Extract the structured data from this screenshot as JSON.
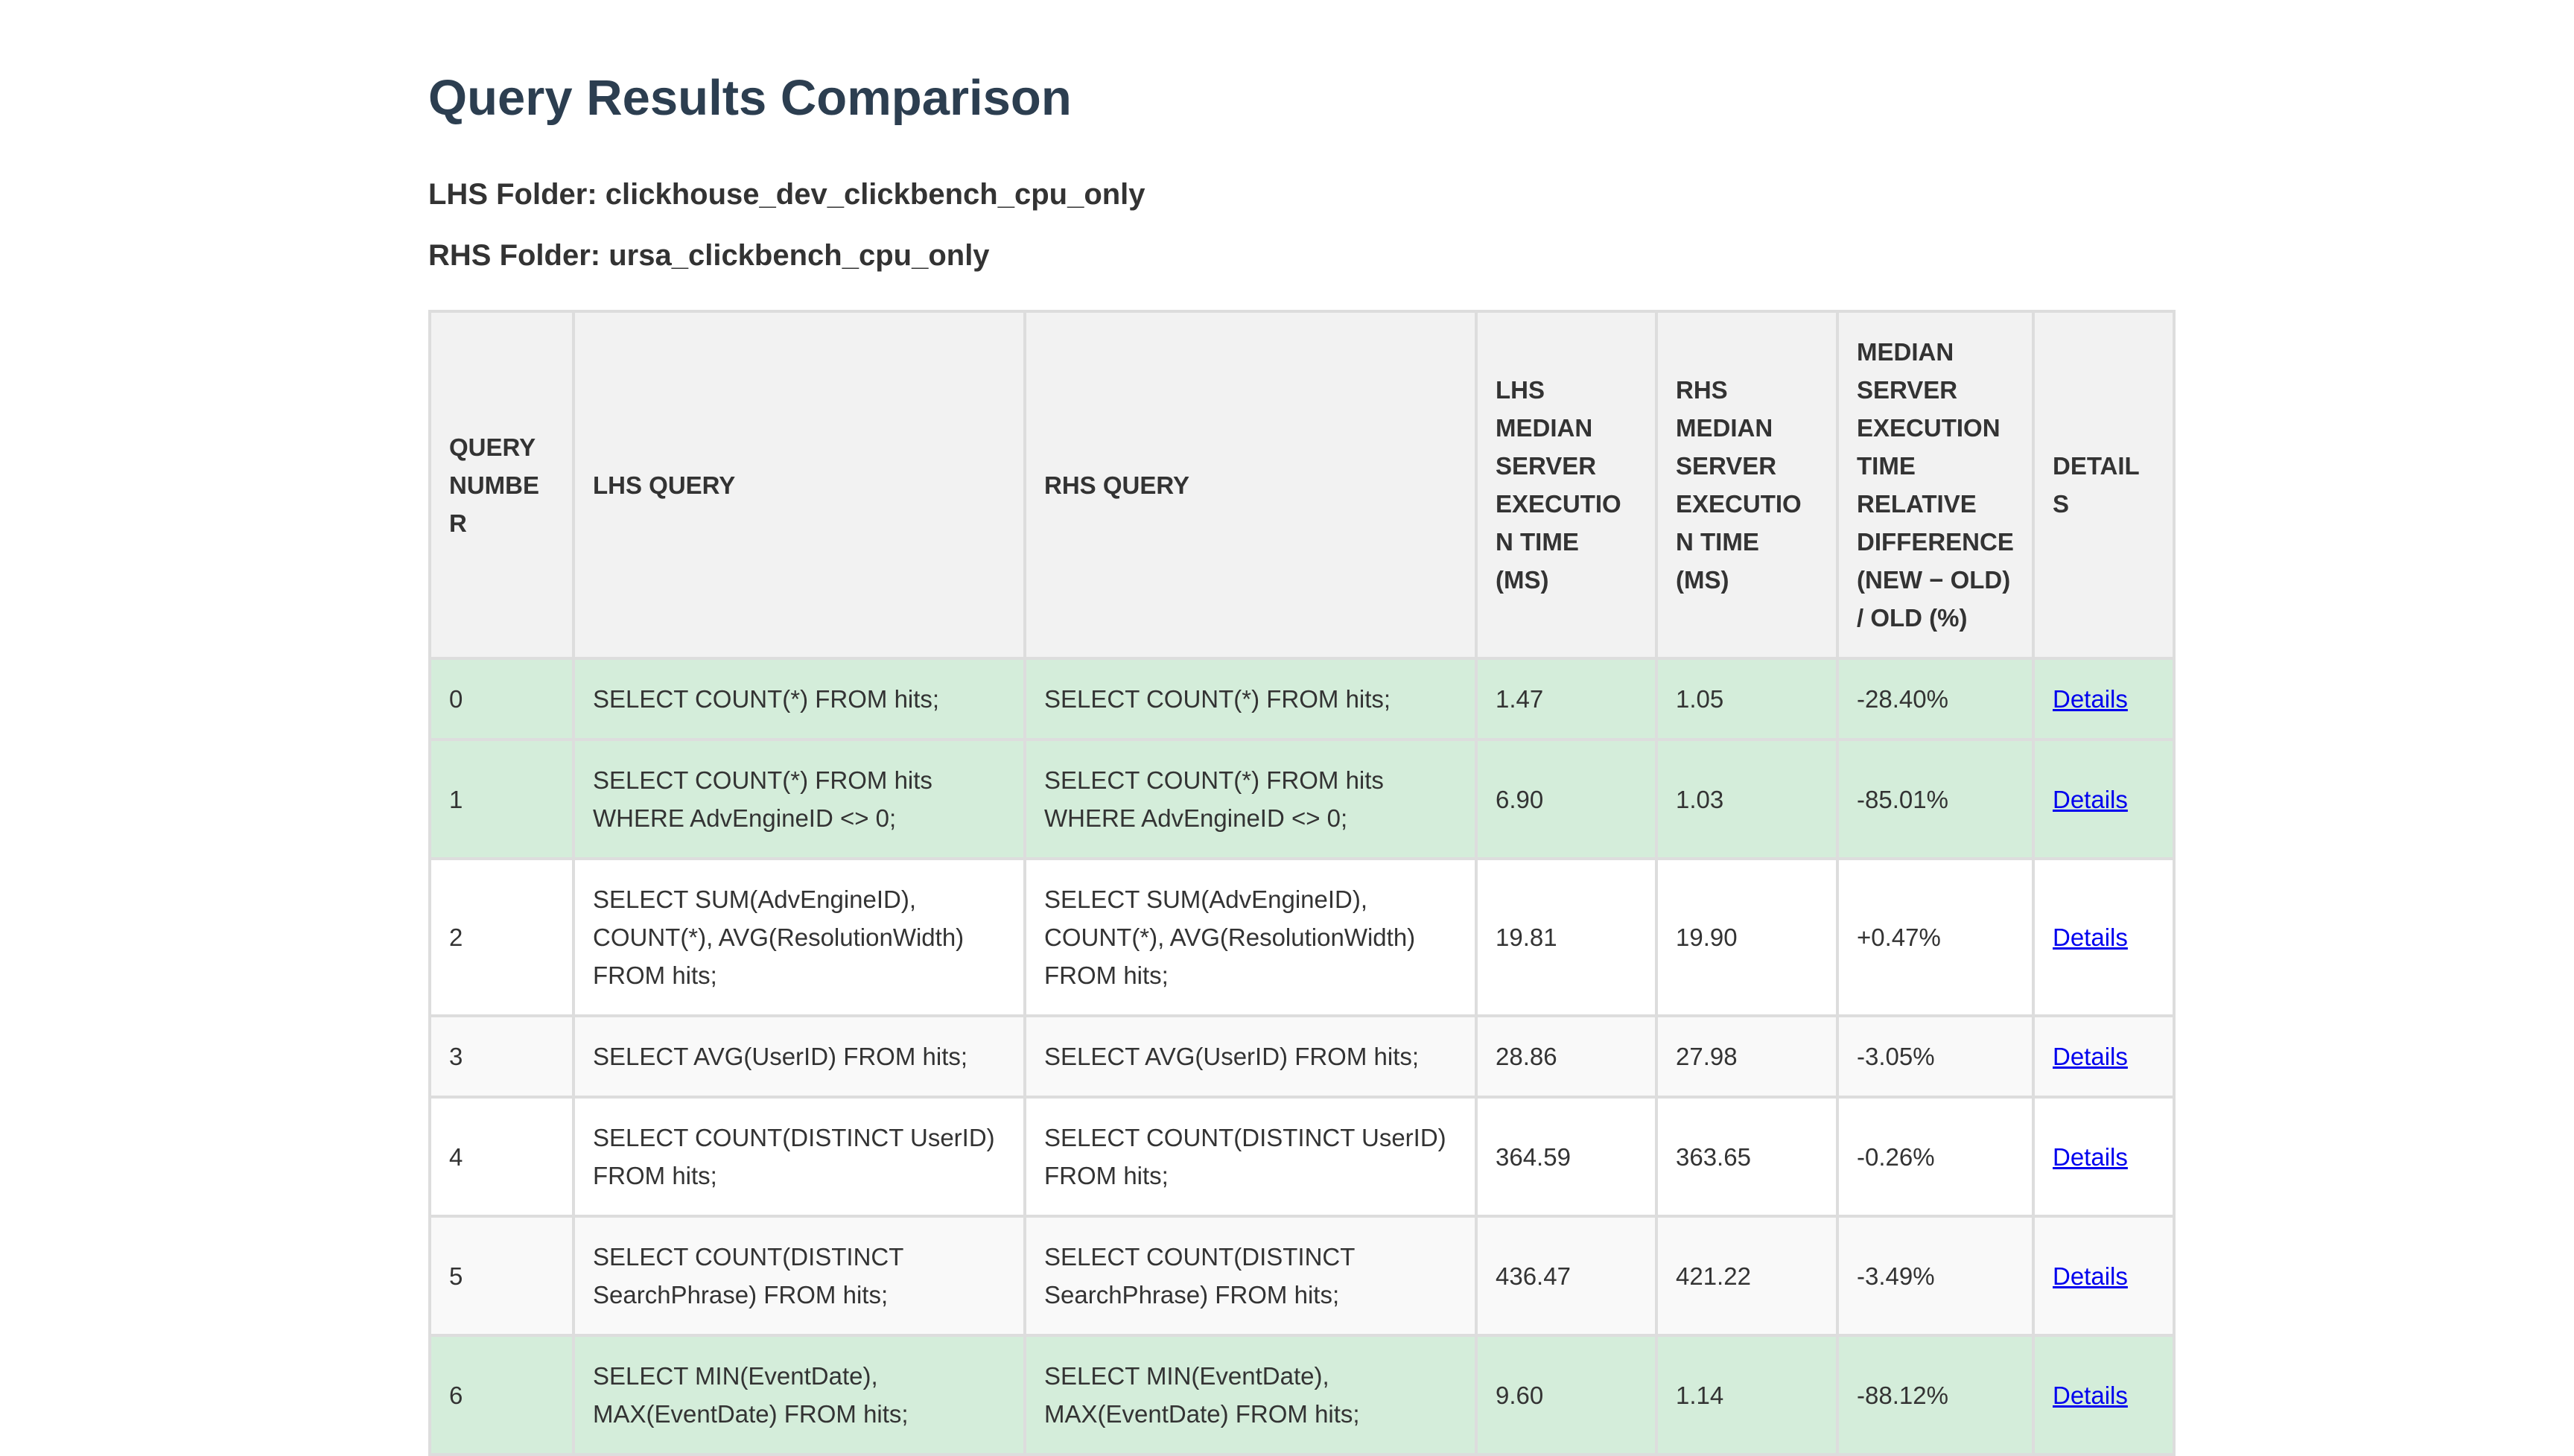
{
  "header": {
    "title": "Query Results Comparison",
    "lhs_folder": "LHS Folder: clickhouse_dev_clickbench_cpu_only",
    "rhs_folder": "RHS Folder: ursa_clickbench_cpu_only"
  },
  "table": {
    "columns": [
      "QUERY NUMBER",
      "LHS QUERY",
      "RHS QUERY",
      "LHS MEDIAN SERVER EXECUTION TIME (MS)",
      "RHS MEDIAN SERVER EXECUTION TIME (MS)",
      "MEDIAN SERVER EXECUTION TIME RELATIVE DIFFERENCE (NEW − OLD) / OLD (%)",
      "DETAILS"
    ],
    "rows": [
      [
        "0",
        "SELECT COUNT(*) FROM hits;",
        "SELECT COUNT(*) FROM hits;",
        "1.47",
        "1.05",
        "-28.40%",
        "Details"
      ],
      [
        "1",
        "SELECT COUNT(*) FROM hits WHERE AdvEngineID <> 0;",
        "SELECT COUNT(*) FROM hits WHERE AdvEngineID <> 0;",
        "6.90",
        "1.03",
        "-85.01%",
        "Details"
      ],
      [
        "2",
        "SELECT SUM(AdvEngineID), COUNT(*), AVG(ResolutionWidth) FROM hits;",
        "SELECT SUM(AdvEngineID), COUNT(*), AVG(ResolutionWidth) FROM hits;",
        "19.81",
        "19.90",
        "+0.47%",
        "Details"
      ],
      [
        "3",
        "SELECT AVG(UserID) FROM hits;",
        "SELECT AVG(UserID) FROM hits;",
        "28.86",
        "27.98",
        "-3.05%",
        "Details"
      ],
      [
        "4",
        "SELECT COUNT(DISTINCT UserID) FROM hits;",
        "SELECT COUNT(DISTINCT UserID) FROM hits;",
        "364.59",
        "363.65",
        "-0.26%",
        "Details"
      ],
      [
        "5",
        "SELECT COUNT(DISTINCT SearchPhrase) FROM hits;",
        "SELECT COUNT(DISTINCT SearchPhrase) FROM hits;",
        "436.47",
        "421.22",
        "-3.49%",
        "Details"
      ],
      [
        "6",
        "SELECT MIN(EventDate), MAX(EventDate) FROM hits;",
        "SELECT MIN(EventDate), MAX(EventDate) FROM hits;",
        "9.60",
        "1.14",
        "-88.12%",
        "Details"
      ]
    ],
    "row_colors": [
      "#d4edda",
      "#d4edda",
      "#ffffff",
      "#f9f9f9",
      "#ffffff",
      "#f9f9f9",
      "#d4edda"
    ]
  }
}
